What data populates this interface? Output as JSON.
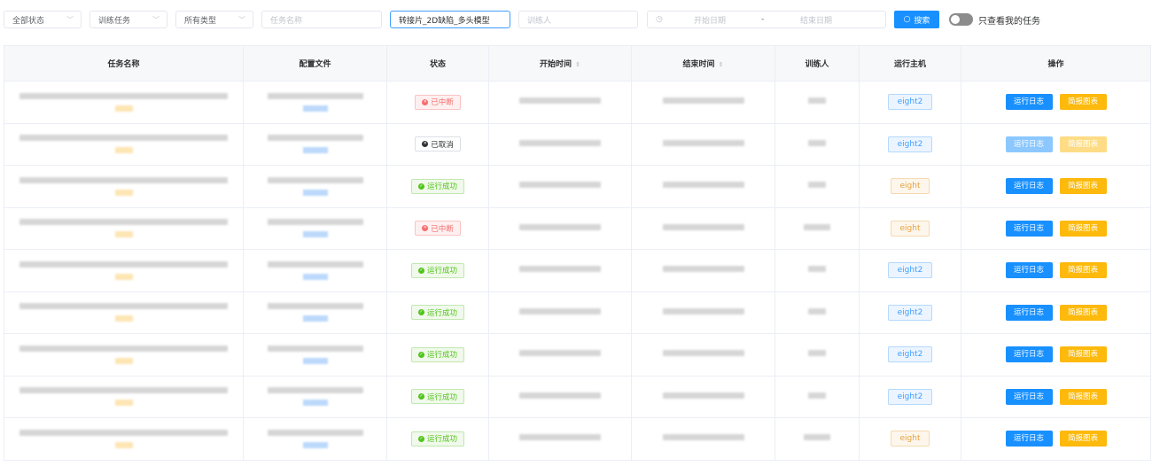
{
  "filters": {
    "status": "全部状态",
    "task_kind": "训练任务",
    "type": "所有类型",
    "task_name_placeholder": "任务名称",
    "keyword": "转接片_2D缺陷_多头模型",
    "trainer_placeholder": "训练人",
    "start_date_placeholder": "开始日期",
    "date_sep": "-",
    "end_date_placeholder": "结束日期",
    "search_label": "搜索",
    "only_mine_label": "只查看我的任务",
    "only_mine_on": false
  },
  "table": {
    "headers": [
      "任务名称",
      "配置文件",
      "状态",
      "开始时间",
      "结束时间",
      "训练人",
      "运行主机",
      "操作"
    ],
    "rows": [
      {
        "status": "已中断",
        "status_kind": "error",
        "host": "eight2",
        "enabled": true
      },
      {
        "status": "已取消",
        "status_kind": "cancel",
        "host": "eight2",
        "enabled": false
      },
      {
        "status": "运行成功",
        "status_kind": "success",
        "host": "eight",
        "enabled": true
      },
      {
        "status": "已中断",
        "status_kind": "error",
        "host": "eight",
        "enabled": true
      },
      {
        "status": "运行成功",
        "status_kind": "success",
        "host": "eight2",
        "enabled": true
      },
      {
        "status": "运行成功",
        "status_kind": "success",
        "host": "eight2",
        "enabled": true
      },
      {
        "status": "运行成功",
        "status_kind": "success",
        "host": "eight2",
        "enabled": true
      },
      {
        "status": "运行成功",
        "status_kind": "success",
        "host": "eight2",
        "enabled": true
      },
      {
        "status": "运行成功",
        "status_kind": "success",
        "host": "eight",
        "enabled": true
      }
    ],
    "actions": {
      "log": "运行日志",
      "report": "简报图表"
    }
  },
  "colors": {
    "primary": "#1890ff",
    "warning": "#fdb90c",
    "error": "#f56c6c",
    "success": "#52c41a"
  }
}
